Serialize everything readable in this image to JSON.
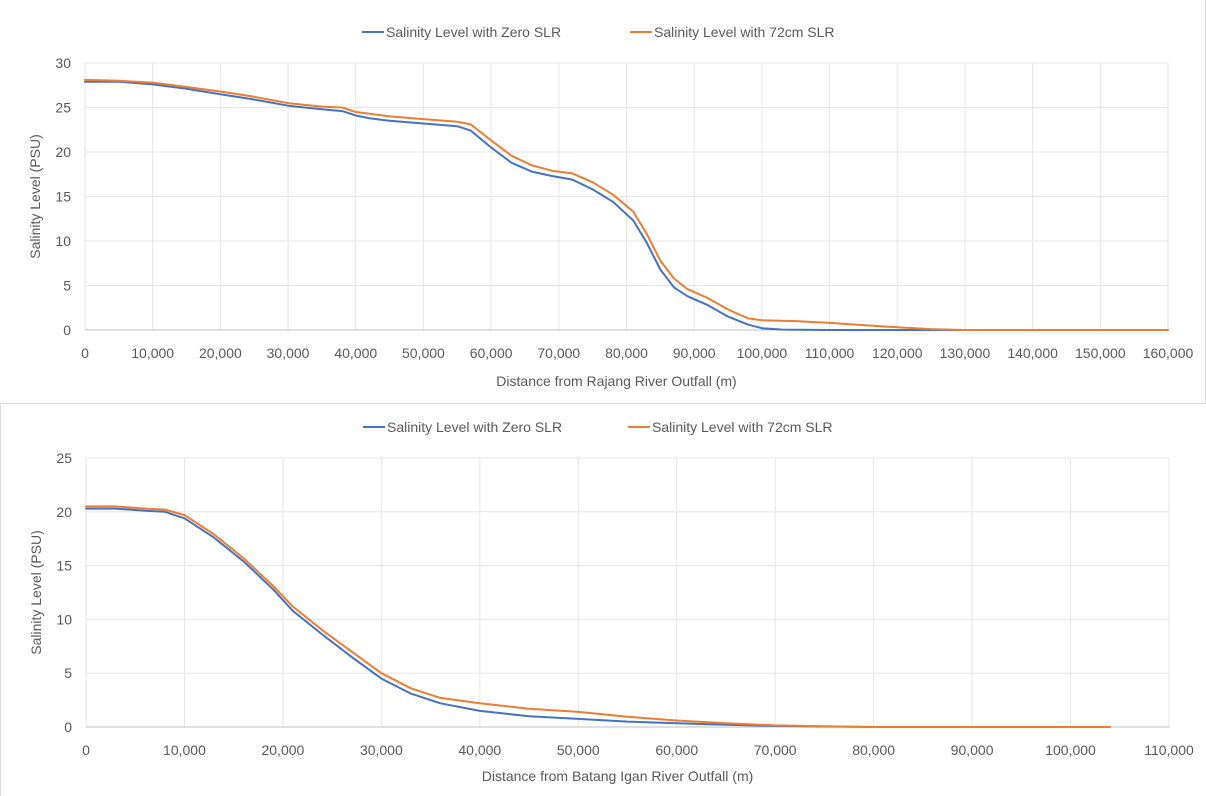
{
  "colors": {
    "series_zero": "#4472c4",
    "series_72": "#ed7d31",
    "gridline": "#e6e6e6",
    "axis": "#bfbfbf",
    "text": "#595959"
  },
  "chart_data": [
    {
      "type": "line",
      "title": "",
      "xlabel": "Distance from Rajang River Outfall (m)",
      "ylabel": "Salinity Level (PSU)",
      "xlim": [
        0,
        160000
      ],
      "ylim": [
        0,
        30
      ],
      "x_ticks": [
        "0",
        "10,000",
        "20,000",
        "30,000",
        "40,000",
        "50,000",
        "60,000",
        "70,000",
        "80,000",
        "90,000",
        "100,000",
        "110,000",
        "120,000",
        "130,000",
        "140,000",
        "150,000",
        "160,000"
      ],
      "y_ticks": [
        "0",
        "5",
        "10",
        "15",
        "20",
        "25",
        "30"
      ],
      "grid": true,
      "legend_position": "top-center",
      "series": [
        {
          "name": "Salinity Level with Zero SLR",
          "color": "#4472c4",
          "points": [
            [
              0,
              27.9
            ],
            [
              5000,
              27.9
            ],
            [
              10000,
              27.6
            ],
            [
              15000,
              27.1
            ],
            [
              20000,
              26.5
            ],
            [
              25000,
              25.9
            ],
            [
              30000,
              25.2
            ],
            [
              35000,
              24.8
            ],
            [
              38000,
              24.6
            ],
            [
              40000,
              24.1
            ],
            [
              42000,
              23.8
            ],
            [
              45000,
              23.5
            ],
            [
              50000,
              23.2
            ],
            [
              55000,
              22.9
            ],
            [
              57000,
              22.4
            ],
            [
              60000,
              20.5
            ],
            [
              63000,
              18.8
            ],
            [
              66000,
              17.8
            ],
            [
              69000,
              17.3
            ],
            [
              72000,
              16.9
            ],
            [
              75000,
              15.8
            ],
            [
              78000,
              14.4
            ],
            [
              81000,
              12.3
            ],
            [
              83000,
              9.8
            ],
            [
              85000,
              6.8
            ],
            [
              87000,
              4.8
            ],
            [
              89000,
              3.8
            ],
            [
              92000,
              2.8
            ],
            [
              95000,
              1.5
            ],
            [
              98000,
              0.6
            ],
            [
              100000,
              0.2
            ],
            [
              103000,
              0.05
            ],
            [
              110000,
              0
            ],
            [
              130000,
              0
            ],
            [
              160000,
              0
            ]
          ]
        },
        {
          "name": "Salinity Level with 72cm SLR",
          "color": "#ed7d31",
          "points": [
            [
              0,
              28.1
            ],
            [
              5000,
              28.0
            ],
            [
              10000,
              27.8
            ],
            [
              15000,
              27.3
            ],
            [
              20000,
              26.8
            ],
            [
              25000,
              26.2
            ],
            [
              30000,
              25.5
            ],
            [
              35000,
              25.1
            ],
            [
              38000,
              25.0
            ],
            [
              40000,
              24.5
            ],
            [
              42000,
              24.3
            ],
            [
              45000,
              24.0
            ],
            [
              50000,
              23.7
            ],
            [
              55000,
              23.4
            ],
            [
              57000,
              23.1
            ],
            [
              60000,
              21.3
            ],
            [
              63000,
              19.6
            ],
            [
              66000,
              18.5
            ],
            [
              69000,
              17.9
            ],
            [
              72000,
              17.6
            ],
            [
              75000,
              16.6
            ],
            [
              78000,
              15.2
            ],
            [
              81000,
              13.3
            ],
            [
              83000,
              10.8
            ],
            [
              85000,
              7.8
            ],
            [
              87000,
              5.8
            ],
            [
              89000,
              4.6
            ],
            [
              92000,
              3.6
            ],
            [
              95000,
              2.3
            ],
            [
              98000,
              1.3
            ],
            [
              100000,
              1.1
            ],
            [
              105000,
              1.0
            ],
            [
              110000,
              0.8
            ],
            [
              115000,
              0.55
            ],
            [
              120000,
              0.3
            ],
            [
              125000,
              0.1
            ],
            [
              130000,
              0
            ],
            [
              160000,
              0
            ]
          ]
        }
      ]
    },
    {
      "type": "line",
      "title": "",
      "xlabel": "Distance from Batang Igan River Outfall (m)",
      "ylabel": "Salinity Level (PSU)",
      "xlim": [
        0,
        110000
      ],
      "ylim": [
        0,
        25
      ],
      "x_ticks": [
        "0",
        "10,000",
        "20,000",
        "30,000",
        "40,000",
        "50,000",
        "60,000",
        "70,000",
        "80,000",
        "90,000",
        "100,000",
        "110,000"
      ],
      "y_ticks": [
        "0",
        "5",
        "10",
        "15",
        "20",
        "25"
      ],
      "grid": true,
      "legend_position": "top-center",
      "series": [
        {
          "name": "Salinity Level with Zero SLR",
          "color": "#4472c4",
          "points": [
            [
              0,
              20.3
            ],
            [
              3000,
              20.3
            ],
            [
              6000,
              20.1
            ],
            [
              8000,
              20.0
            ],
            [
              10000,
              19.4
            ],
            [
              13000,
              17.6
            ],
            [
              16000,
              15.4
            ],
            [
              19000,
              12.8
            ],
            [
              21000,
              10.8
            ],
            [
              24000,
              8.6
            ],
            [
              27000,
              6.5
            ],
            [
              30000,
              4.5
            ],
            [
              33000,
              3.1
            ],
            [
              36000,
              2.2
            ],
            [
              40000,
              1.5
            ],
            [
              45000,
              1.0
            ],
            [
              50000,
              0.75
            ],
            [
              55000,
              0.5
            ],
            [
              60000,
              0.35
            ],
            [
              65000,
              0.2
            ],
            [
              70000,
              0.1
            ],
            [
              75000,
              0.05
            ],
            [
              80000,
              0
            ],
            [
              104000,
              0
            ]
          ]
        },
        {
          "name": "Salinity Level with 72cm SLR",
          "color": "#ed7d31",
          "points": [
            [
              0,
              20.5
            ],
            [
              3000,
              20.5
            ],
            [
              6000,
              20.3
            ],
            [
              8000,
              20.2
            ],
            [
              10000,
              19.7
            ],
            [
              13000,
              17.9
            ],
            [
              16000,
              15.7
            ],
            [
              19000,
              13.1
            ],
            [
              21000,
              11.2
            ],
            [
              24000,
              9.0
            ],
            [
              27000,
              7.0
            ],
            [
              30000,
              5.0
            ],
            [
              33000,
              3.6
            ],
            [
              36000,
              2.7
            ],
            [
              40000,
              2.2
            ],
            [
              45000,
              1.7
            ],
            [
              50000,
              1.4
            ],
            [
              55000,
              0.95
            ],
            [
              60000,
              0.6
            ],
            [
              65000,
              0.35
            ],
            [
              70000,
              0.15
            ],
            [
              75000,
              0.07
            ],
            [
              80000,
              0
            ],
            [
              104000,
              0
            ]
          ]
        }
      ]
    }
  ]
}
